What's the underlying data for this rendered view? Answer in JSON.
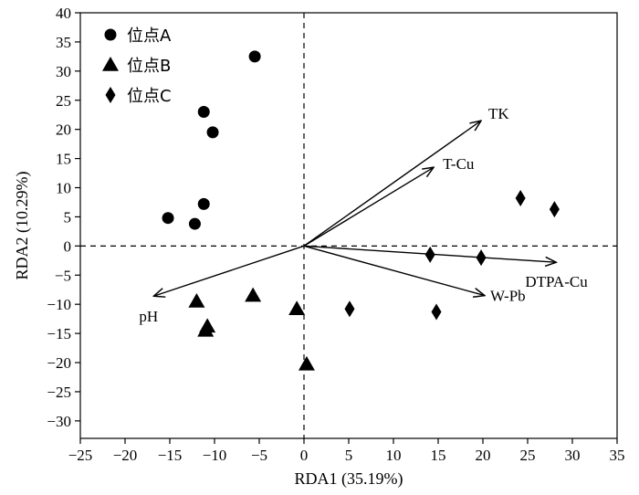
{
  "chart_data": {
    "type": "scatter",
    "xlabel": "RDA1 (35.19%)",
    "ylabel": "RDA2 (10.29%)",
    "xlim": [
      -25,
      35
    ],
    "ylim": [
      -33,
      40
    ],
    "x_ticks": [
      -25,
      -20,
      -15,
      -10,
      -5,
      0,
      5,
      10,
      15,
      20,
      25,
      30,
      35
    ],
    "y_ticks": [
      -30,
      -25,
      -20,
      -15,
      -10,
      -5,
      0,
      5,
      10,
      15,
      20,
      25,
      30,
      35,
      40
    ],
    "grid": false,
    "legend_position": "top-left",
    "series": [
      {
        "name": "位点A",
        "marker": "circle",
        "color": "#000000",
        "points": [
          [
            -5.5,
            32.5
          ],
          [
            -11.2,
            23.0
          ],
          [
            -10.2,
            19.5
          ],
          [
            -11.2,
            7.2
          ],
          [
            -15.2,
            4.8
          ],
          [
            -12.2,
            3.8
          ]
        ]
      },
      {
        "name": "位点B",
        "marker": "triangle",
        "color": "#000000",
        "points": [
          [
            -12.0,
            -9.5
          ],
          [
            -5.7,
            -8.5
          ],
          [
            -10.8,
            -13.8
          ],
          [
            -11.0,
            -14.5
          ],
          [
            -0.8,
            -10.8
          ],
          [
            0.3,
            -20.3
          ]
        ]
      },
      {
        "name": "位点C",
        "marker": "diamond",
        "color": "#000000",
        "points": [
          [
            24.2,
            8.2
          ],
          [
            28.0,
            6.3
          ],
          [
            14.1,
            -1.5
          ],
          [
            19.8,
            -2.0
          ],
          [
            5.1,
            -10.8
          ],
          [
            14.8,
            -11.3
          ]
        ]
      }
    ],
    "arrows": [
      {
        "label": "TK",
        "x": 19.8,
        "y": 21.5
      },
      {
        "label": "T-Cu",
        "x": 14.5,
        "y": 13.5
      },
      {
        "label": "DTPA-Cu",
        "x": 28.2,
        "y": -2.8
      },
      {
        "label": "W-Pb",
        "x": 20.2,
        "y": -8.5
      },
      {
        "label": "pH",
        "x": -16.8,
        "y": -8.6
      }
    ],
    "reference_lines": {
      "x": 0,
      "y": 0,
      "style": "dashed"
    }
  }
}
